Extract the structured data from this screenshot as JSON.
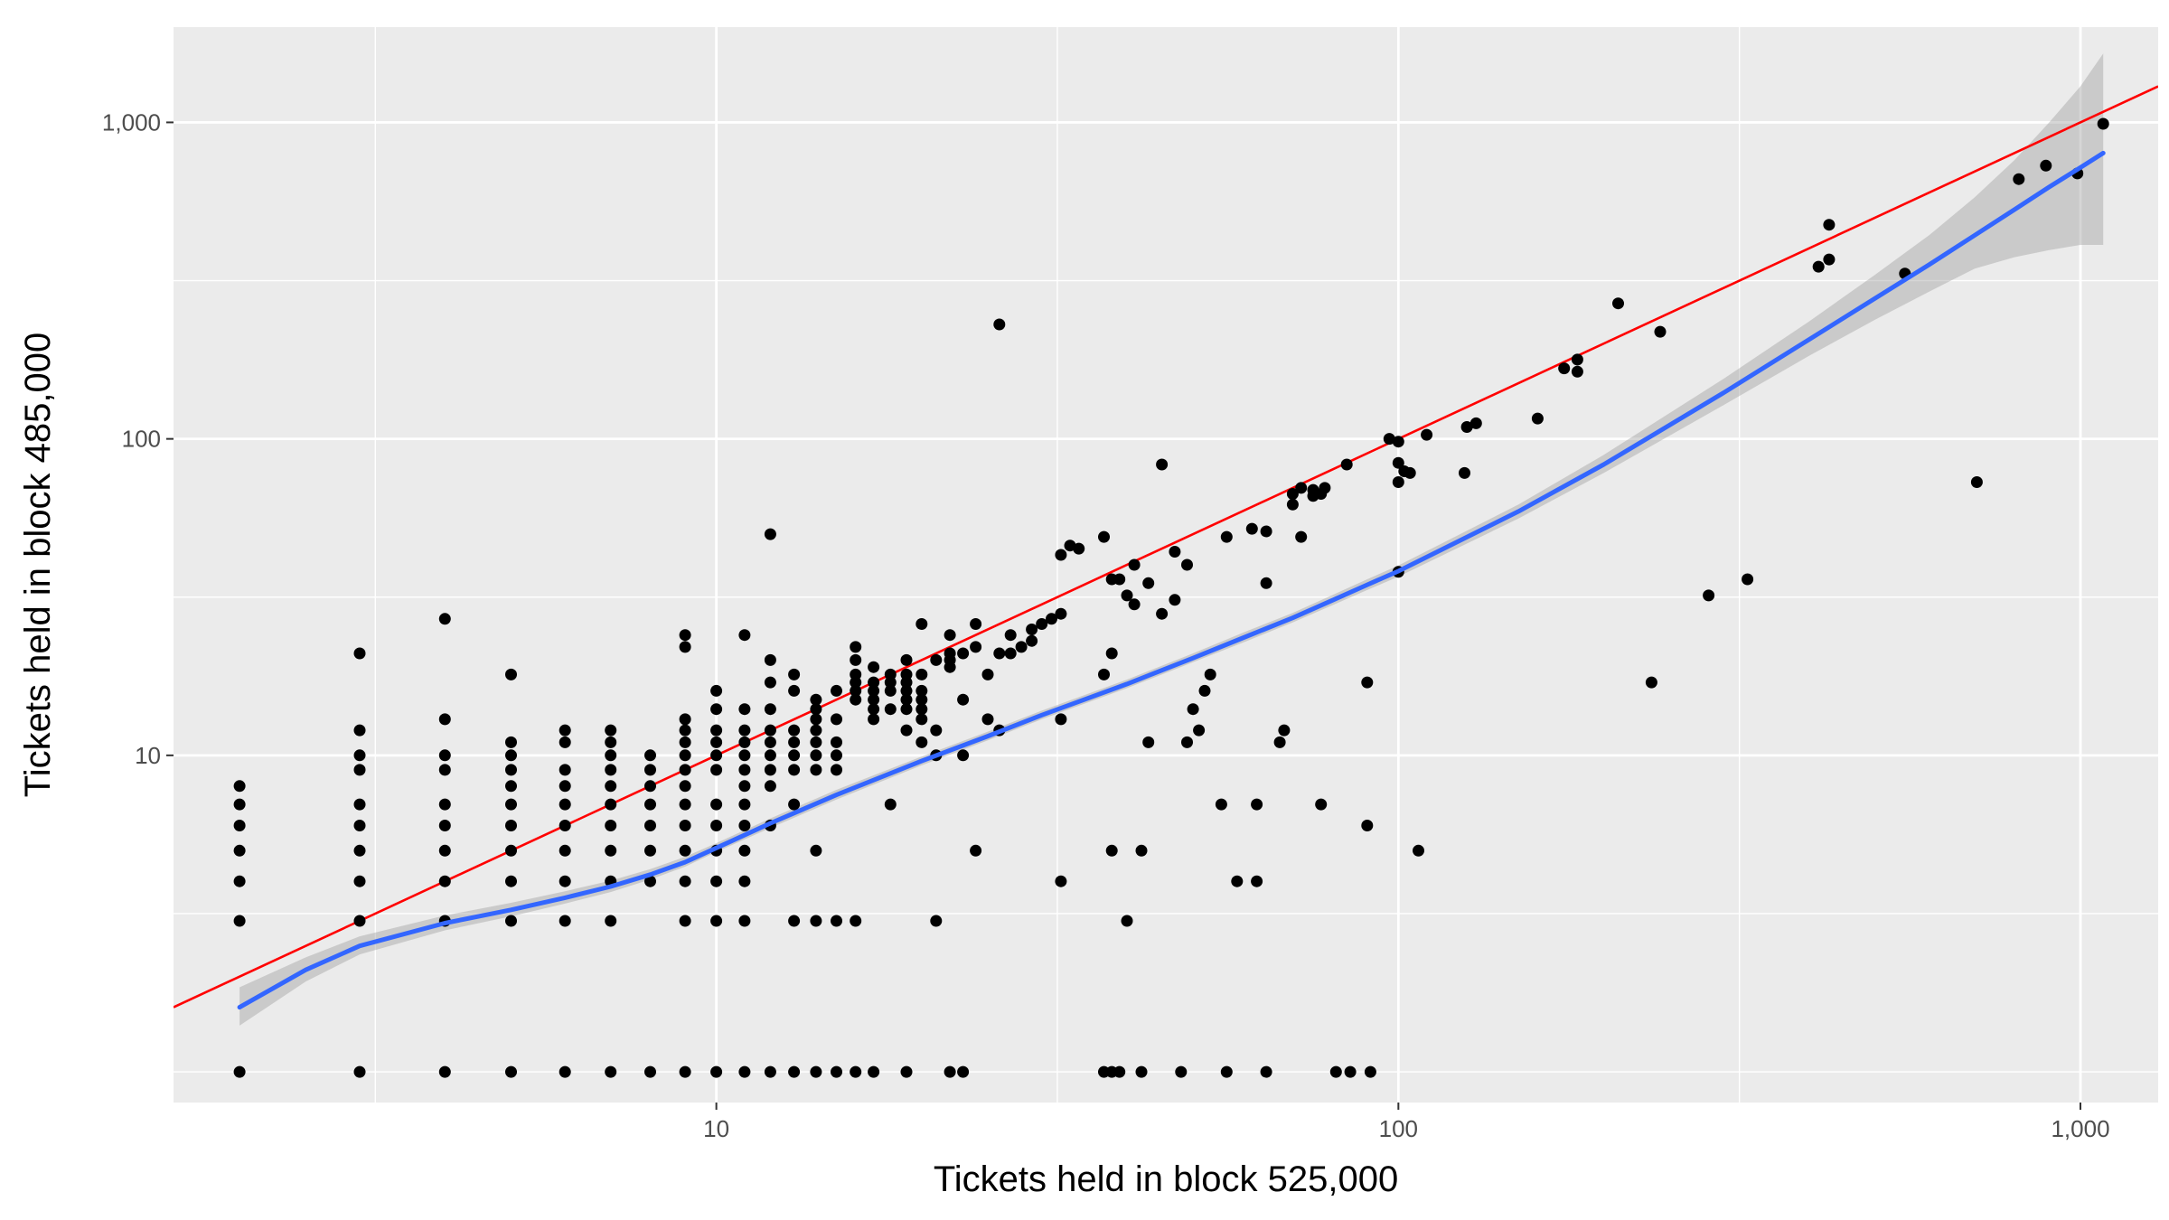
{
  "chart_data": {
    "type": "scatter",
    "xlabel": "Tickets held in block 525,000",
    "ylabel": "Tickets held in block 485,000",
    "x_scale": "log10",
    "y_scale": "log10",
    "xlim": [
      1.6,
      1300
    ],
    "ylim": [
      0.8,
      2000
    ],
    "x_ticks": [
      {
        "value": 10,
        "label": "10"
      },
      {
        "value": 100,
        "label": "100"
      },
      {
        "value": 1000,
        "label": "1,000"
      }
    ],
    "y_ticks": [
      {
        "value": 10,
        "label": "10"
      },
      {
        "value": 100,
        "label": "100"
      },
      {
        "value": 1000,
        "label": "1,000"
      }
    ],
    "grid": true,
    "colors": {
      "panel": "#ebebeb",
      "grid": "#ffffff",
      "points": "#000000",
      "smooth": "#3366ff",
      "ribbon": "#999999",
      "reference": "#ff0000"
    },
    "points": [
      [
        2,
        1
      ],
      [
        2,
        3
      ],
      [
        2,
        4
      ],
      [
        2,
        5
      ],
      [
        2,
        6
      ],
      [
        2,
        7
      ],
      [
        2,
        8
      ],
      [
        3,
        1
      ],
      [
        3,
        3
      ],
      [
        3,
        4
      ],
      [
        3,
        5
      ],
      [
        3,
        6
      ],
      [
        3,
        7
      ],
      [
        3,
        9
      ],
      [
        3,
        10
      ],
      [
        3,
        12
      ],
      [
        3,
        21
      ],
      [
        4,
        1
      ],
      [
        4,
        3
      ],
      [
        4,
        4
      ],
      [
        4,
        5
      ],
      [
        4,
        6
      ],
      [
        4,
        7
      ],
      [
        4,
        9
      ],
      [
        4,
        10
      ],
      [
        4,
        13
      ],
      [
        4,
        27
      ],
      [
        5,
        1
      ],
      [
        5,
        3
      ],
      [
        5,
        4
      ],
      [
        5,
        5
      ],
      [
        5,
        6
      ],
      [
        5,
        7
      ],
      [
        5,
        8
      ],
      [
        5,
        9
      ],
      [
        5,
        10
      ],
      [
        5,
        11
      ],
      [
        5,
        18
      ],
      [
        6,
        1
      ],
      [
        6,
        3
      ],
      [
        6,
        4
      ],
      [
        6,
        5
      ],
      [
        6,
        6
      ],
      [
        6,
        7
      ],
      [
        6,
        8
      ],
      [
        6,
        9
      ],
      [
        6,
        11
      ],
      [
        6,
        12
      ],
      [
        7,
        1
      ],
      [
        7,
        3
      ],
      [
        7,
        4
      ],
      [
        7,
        5
      ],
      [
        7,
        6
      ],
      [
        7,
        7
      ],
      [
        7,
        8
      ],
      [
        7,
        9
      ],
      [
        7,
        10
      ],
      [
        7,
        11
      ],
      [
        7,
        12
      ],
      [
        8,
        1
      ],
      [
        8,
        4
      ],
      [
        8,
        5
      ],
      [
        8,
        6
      ],
      [
        8,
        7
      ],
      [
        8,
        8
      ],
      [
        8,
        9
      ],
      [
        8,
        10
      ],
      [
        9,
        1
      ],
      [
        9,
        3
      ],
      [
        9,
        4
      ],
      [
        9,
        5
      ],
      [
        9,
        6
      ],
      [
        9,
        7
      ],
      [
        9,
        8
      ],
      [
        9,
        9
      ],
      [
        9,
        10
      ],
      [
        9,
        11
      ],
      [
        9,
        12
      ],
      [
        9,
        13
      ],
      [
        9,
        22
      ],
      [
        9,
        24
      ],
      [
        10,
        1
      ],
      [
        10,
        3
      ],
      [
        10,
        4
      ],
      [
        10,
        5
      ],
      [
        10,
        6
      ],
      [
        10,
        7
      ],
      [
        10,
        9
      ],
      [
        10,
        10
      ],
      [
        10,
        11
      ],
      [
        10,
        12
      ],
      [
        10,
        14
      ],
      [
        10,
        16
      ],
      [
        11,
        1
      ],
      [
        11,
        3
      ],
      [
        11,
        4
      ],
      [
        11,
        5
      ],
      [
        11,
        6
      ],
      [
        11,
        7
      ],
      [
        11,
        8
      ],
      [
        11,
        9
      ],
      [
        11,
        10
      ],
      [
        11,
        11
      ],
      [
        11,
        12
      ],
      [
        11,
        14
      ],
      [
        11,
        24
      ],
      [
        12,
        1
      ],
      [
        12,
        6
      ],
      [
        12,
        8
      ],
      [
        12,
        9
      ],
      [
        12,
        10
      ],
      [
        12,
        11
      ],
      [
        12,
        12
      ],
      [
        12,
        14
      ],
      [
        12,
        17
      ],
      [
        12,
        20
      ],
      [
        12,
        50
      ],
      [
        13,
        1
      ],
      [
        13,
        3
      ],
      [
        13,
        7
      ],
      [
        13,
        9
      ],
      [
        13,
        10
      ],
      [
        13,
        11
      ],
      [
        13,
        12
      ],
      [
        13,
        16
      ],
      [
        13,
        18
      ],
      [
        14,
        1
      ],
      [
        14,
        3
      ],
      [
        14,
        5
      ],
      [
        14,
        9
      ],
      [
        14,
        10
      ],
      [
        14,
        11
      ],
      [
        14,
        12
      ],
      [
        14,
        13
      ],
      [
        14,
        14
      ],
      [
        14,
        15
      ],
      [
        15,
        1
      ],
      [
        15,
        3
      ],
      [
        15,
        9
      ],
      [
        15,
        10
      ],
      [
        15,
        11
      ],
      [
        15,
        13
      ],
      [
        15,
        16
      ],
      [
        16,
        1
      ],
      [
        16,
        3
      ],
      [
        16,
        15
      ],
      [
        16,
        16
      ],
      [
        16,
        17
      ],
      [
        16,
        18
      ],
      [
        16,
        20
      ],
      [
        16,
        22
      ],
      [
        17,
        1
      ],
      [
        17,
        13
      ],
      [
        17,
        14
      ],
      [
        17,
        15
      ],
      [
        17,
        16
      ],
      [
        17,
        17
      ],
      [
        17,
        19
      ],
      [
        18,
        7
      ],
      [
        18,
        14
      ],
      [
        18,
        16
      ],
      [
        18,
        17
      ],
      [
        18,
        18
      ],
      [
        19,
        1
      ],
      [
        19,
        12
      ],
      [
        19,
        14
      ],
      [
        19,
        15
      ],
      [
        19,
        16
      ],
      [
        19,
        17
      ],
      [
        19,
        18
      ],
      [
        19,
        20
      ],
      [
        20,
        11
      ],
      [
        20,
        13
      ],
      [
        20,
        14
      ],
      [
        20,
        15
      ],
      [
        20,
        16
      ],
      [
        20,
        18
      ],
      [
        20,
        26
      ],
      [
        21,
        3
      ],
      [
        21,
        10
      ],
      [
        21,
        12
      ],
      [
        21,
        20
      ],
      [
        22,
        1
      ],
      [
        22,
        19
      ],
      [
        22,
        20
      ],
      [
        22,
        21
      ],
      [
        22,
        24
      ],
      [
        23,
        1
      ],
      [
        23,
        10
      ],
      [
        23,
        15
      ],
      [
        23,
        21
      ],
      [
        24,
        5
      ],
      [
        24,
        22
      ],
      [
        24,
        26
      ],
      [
        25,
        13
      ],
      [
        25,
        18
      ],
      [
        26,
        12
      ],
      [
        26,
        21
      ],
      [
        26,
        230
      ],
      [
        27,
        21
      ],
      [
        27,
        24
      ],
      [
        28,
        22
      ],
      [
        29,
        23
      ],
      [
        29,
        25
      ],
      [
        30,
        26
      ],
      [
        31,
        27
      ],
      [
        32,
        4
      ],
      [
        32,
        13
      ],
      [
        32,
        28
      ],
      [
        32,
        43
      ],
      [
        33,
        46
      ],
      [
        34,
        45
      ],
      [
        37,
        1
      ],
      [
        37,
        18
      ],
      [
        37,
        49
      ],
      [
        38,
        1
      ],
      [
        38,
        5
      ],
      [
        38,
        21
      ],
      [
        38,
        36
      ],
      [
        39,
        1
      ],
      [
        39,
        36
      ],
      [
        40,
        3
      ],
      [
        40,
        32
      ],
      [
        41,
        30
      ],
      [
        41,
        40
      ],
      [
        42,
        1
      ],
      [
        42,
        5
      ],
      [
        43,
        11
      ],
      [
        43,
        35
      ],
      [
        45,
        28
      ],
      [
        45,
        83
      ],
      [
        47,
        31
      ],
      [
        47,
        44
      ],
      [
        48,
        1
      ],
      [
        49,
        11
      ],
      [
        49,
        40
      ],
      [
        50,
        14
      ],
      [
        51,
        12
      ],
      [
        52,
        16
      ],
      [
        53,
        18
      ],
      [
        55,
        7
      ],
      [
        56,
        1
      ],
      [
        56,
        49
      ],
      [
        58,
        4
      ],
      [
        61,
        52
      ],
      [
        62,
        4
      ],
      [
        62,
        7
      ],
      [
        64,
        1
      ],
      [
        64,
        35
      ],
      [
        64,
        51
      ],
      [
        67,
        11
      ],
      [
        68,
        12
      ],
      [
        70,
        62
      ],
      [
        70,
        67
      ],
      [
        72,
        49
      ],
      [
        72,
        70
      ],
      [
        75,
        66
      ],
      [
        75,
        69
      ],
      [
        77,
        7
      ],
      [
        77,
        67
      ],
      [
        78,
        70
      ],
      [
        81,
        1
      ],
      [
        84,
        83
      ],
      [
        85,
        1
      ],
      [
        90,
        6
      ],
      [
        90,
        17
      ],
      [
        91,
        1
      ],
      [
        97,
        100
      ],
      [
        100,
        38
      ],
      [
        100,
        73
      ],
      [
        100,
        84
      ],
      [
        100,
        98
      ],
      [
        102,
        79
      ],
      [
        104,
        78
      ],
      [
        107,
        5
      ],
      [
        110,
        103
      ],
      [
        125,
        78
      ],
      [
        126,
        109
      ],
      [
        130,
        112
      ],
      [
        160,
        116
      ],
      [
        175,
        167
      ],
      [
        183,
        163
      ],
      [
        183,
        178
      ],
      [
        210,
        268
      ],
      [
        235,
        17
      ],
      [
        242,
        218
      ],
      [
        285,
        32
      ],
      [
        325,
        36
      ],
      [
        413,
        350
      ],
      [
        428,
        369
      ],
      [
        428,
        475
      ],
      [
        553,
        333
      ],
      [
        705,
        73
      ],
      [
        812,
        662
      ],
      [
        890,
        730
      ],
      [
        990,
        690
      ],
      [
        1080,
        990
      ]
    ],
    "smooth": {
      "x": [
        2,
        2.5,
        3,
        4,
        5,
        6,
        7,
        8,
        9,
        10,
        12,
        15,
        20,
        25,
        30,
        40,
        50,
        60,
        70,
        80,
        90,
        100,
        150,
        200,
        300,
        400,
        500,
        600,
        700,
        800,
        900,
        1000,
        1080
      ],
      "y": [
        1.6,
        2.1,
        2.5,
        2.95,
        3.25,
        3.55,
        3.85,
        4.2,
        4.6,
        5.1,
        6.1,
        7.5,
        9.6,
        11.5,
        13.4,
        16.8,
        20.3,
        23.8,
        27.2,
        30.9,
        34.6,
        38.2,
        59,
        83,
        140,
        206,
        278,
        355,
        440,
        530,
        625,
        720,
        800
      ],
      "lower": [
        1.4,
        1.93,
        2.35,
        2.8,
        3.1,
        3.4,
        3.7,
        4.05,
        4.45,
        4.95,
        5.9,
        7.25,
        9.3,
        11.15,
        13.0,
        16.3,
        19.7,
        23.0,
        26.3,
        29.8,
        33.3,
        36.7,
        56,
        78,
        128,
        183,
        238,
        292,
        345,
        375,
        395,
        410,
        410
      ],
      "upper": [
        1.85,
        2.3,
        2.68,
        3.12,
        3.42,
        3.72,
        4.02,
        4.37,
        4.78,
        5.28,
        6.32,
        7.78,
        9.92,
        11.88,
        13.84,
        17.35,
        21.0,
        24.7,
        28.2,
        32.1,
        36.0,
        39.8,
        62,
        89,
        155,
        235,
        330,
        440,
        580,
        760,
        1000,
        1300,
        1650
      ]
    },
    "reference_line": {
      "slope": 1,
      "intercept": 0
    }
  }
}
